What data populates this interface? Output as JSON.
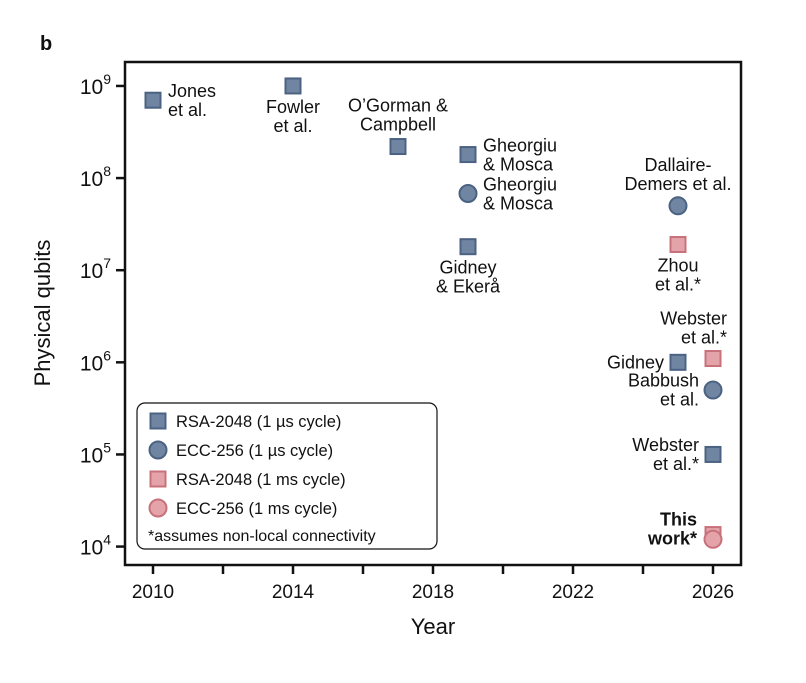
{
  "panel_label": "b",
  "chart_data": {
    "type": "scatter",
    "xlabel": "Year",
    "ylabel": "Physical qubits",
    "xlim": [
      2009.2,
      2026.8
    ],
    "ylim_log10": [
      3.8,
      9.26
    ],
    "yscale": "log",
    "xticks": [
      2010,
      2012,
      2014,
      2016,
      2018,
      2020,
      2022,
      2024,
      2026
    ],
    "xtick_labels": [
      "2010",
      "2014",
      "2018",
      "2022",
      "2026"
    ],
    "xtick_label_values": [
      2010,
      2014,
      2018,
      2022,
      2026
    ],
    "yticks_exp": [
      4,
      5,
      6,
      7,
      8,
      9
    ],
    "ytick_base": "10",
    "grid": false,
    "legend": {
      "placement": "bottom-left",
      "entries": [
        {
          "label": "RSA-2048 (1 µs cycle)",
          "series": "rsa_us"
        },
        {
          "label": "ECC-256 (1 µs cycle)",
          "series": "ecc_us"
        },
        {
          "label": "RSA-2048 (1 ms cycle)",
          "series": "rsa_ms"
        },
        {
          "label": "ECC-256 (1 ms cycle)",
          "series": "ecc_ms"
        }
      ],
      "note": "*assumes non-local connectivity"
    },
    "series_styles": {
      "rsa_us": {
        "marker": "square",
        "fill": "#6f85a1",
        "stroke": "#4b6283"
      },
      "ecc_us": {
        "marker": "circle",
        "fill": "#6f85a1",
        "stroke": "#4b6283"
      },
      "rsa_ms": {
        "marker": "square",
        "fill": "#e3a3a8",
        "stroke": "#c8717a"
      },
      "ecc_ms": {
        "marker": "circle",
        "fill": "#e3a3a8",
        "stroke": "#c8717a"
      }
    },
    "points": [
      {
        "series": "rsa_us",
        "x": 2010,
        "y": 700000000,
        "label": [
          "Jones",
          "et al."
        ],
        "anchor": "right"
      },
      {
        "series": "rsa_us",
        "x": 2014,
        "y": 1000000000,
        "label": [
          "Fowler",
          "et al."
        ],
        "anchor": "below"
      },
      {
        "series": "rsa_us",
        "x": 2017,
        "y": 220000000,
        "label": [
          "O’Gorman &",
          "Campbell"
        ],
        "anchor": "above"
      },
      {
        "series": "rsa_us",
        "x": 2019,
        "y": 180000000,
        "label": [
          "Gheorgiu",
          "& Mosca"
        ],
        "anchor": "right"
      },
      {
        "series": "ecc_us",
        "x": 2019,
        "y": 68000000,
        "label": [
          "Gheorgiu",
          "& Mosca"
        ],
        "anchor": "right"
      },
      {
        "series": "rsa_us",
        "x": 2019,
        "y": 18000000,
        "label": [
          "Gidney",
          "& Ekerå"
        ],
        "anchor": "below"
      },
      {
        "series": "ecc_us",
        "x": 2025,
        "y": 50000000,
        "label": [
          "Dallaire-",
          "Demers et al."
        ],
        "anchor": "above"
      },
      {
        "series": "rsa_ms",
        "x": 2025,
        "y": 19000000,
        "label": [
          "Zhou",
          "et al.*"
        ],
        "anchor": "below"
      },
      {
        "series": "rsa_us",
        "x": 2025,
        "y": 1000000,
        "label": [
          "Gidney"
        ],
        "anchor": "left"
      },
      {
        "series": "rsa_ms",
        "x": 2026,
        "y": 1100000,
        "label": [
          "Webster",
          "et al.*"
        ],
        "anchor": "above-left"
      },
      {
        "series": "ecc_us",
        "x": 2026,
        "y": 500000,
        "label": [
          "Babbush",
          "et al."
        ],
        "anchor": "left"
      },
      {
        "series": "rsa_us",
        "x": 2026,
        "y": 100000,
        "label": [
          "Webster",
          "et al.*"
        ],
        "anchor": "left"
      },
      {
        "series": "rsa_ms",
        "x": 2026,
        "y": 13500,
        "label": [],
        "anchor": "none"
      },
      {
        "series": "ecc_ms",
        "x": 2026,
        "y": 12000,
        "label": [
          "This",
          "work*"
        ],
        "anchor": "left",
        "bold": true
      }
    ]
  }
}
